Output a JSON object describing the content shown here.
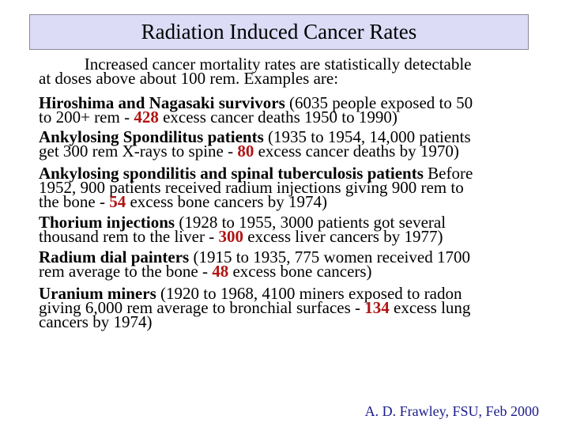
{
  "title": "Radiation Induced Cancer Rates",
  "accent_color": "#b01414",
  "footer_color": "#1a1a8c",
  "paragraphs": [
    {
      "lines": [
        [
          {
            "t": "           Increased cancer mortality rates are statistically detectable"
          }
        ],
        [
          {
            "t": "at doses above about 100 rem. Examples are:"
          }
        ]
      ]
    },
    {
      "lines": [
        [
          {
            "t": " Hiroshima and Nagasaki survivors",
            "s": "b"
          },
          {
            "t": " (6035 people exposed to 50"
          }
        ],
        [
          {
            "t": "to 200+ rem - "
          },
          {
            "t": "428",
            "s": "n"
          },
          {
            "t": " excess cancer deaths 1950 to 1990)"
          }
        ]
      ]
    },
    {
      "lines": [
        [
          {
            "t": " Ankylosing Spondilitus patients",
            "s": "b"
          },
          {
            "t": " (1935 to 1954, 14,000 patients"
          }
        ],
        [
          {
            "t": "get 300 rem X-rays to spine - "
          },
          {
            "t": "80",
            "s": "n"
          },
          {
            "t": " excess cancer deaths by 1970)"
          }
        ]
      ]
    },
    {
      "lines": [
        [
          {
            "t": " Ankylosing spondilitis and spinal tuberculosis patients",
            "s": "b"
          },
          {
            "t": " Before"
          }
        ],
        [
          {
            "t": "1952, 900 patients received radium injections giving 900 rem to"
          }
        ],
        [
          {
            "t": "the bone - "
          },
          {
            "t": "54",
            "s": "n"
          },
          {
            "t": " excess bone cancers by 1974)"
          }
        ]
      ]
    },
    {
      "lines": [
        [
          {
            "t": " Thorium injections",
            "s": "b"
          },
          {
            "t": " (1928 to 1955, 3000 patients got several"
          }
        ],
        [
          {
            "t": "thousand rem to the liver - "
          },
          {
            "t": "300",
            "s": "n"
          },
          {
            "t": " excess liver cancers by 1977)"
          }
        ]
      ]
    },
    {
      "lines": [
        [
          {
            "t": " Radium dial painters",
            "s": "b"
          },
          {
            "t": " (1915 to 1935, 775 women received 1700"
          }
        ],
        [
          {
            "t": "rem average to the bone - "
          },
          {
            "t": "48",
            "s": "n"
          },
          {
            "t": " excess bone cancers)"
          }
        ]
      ]
    },
    {
      "lines": [
        [
          {
            "t": " Uranium miners",
            "s": "b"
          },
          {
            "t": " (1920 to 1968, 4100 miners exposed to radon"
          }
        ],
        [
          {
            "t": "giving 6,000 rem average to bronchial surfaces - "
          },
          {
            "t": "134",
            "s": "n"
          },
          {
            "t": " excess lung"
          }
        ],
        [
          {
            "t": "cancers by 1974)"
          }
        ]
      ]
    }
  ],
  "footer": "A. D. Frawley, FSU, Feb 2000"
}
